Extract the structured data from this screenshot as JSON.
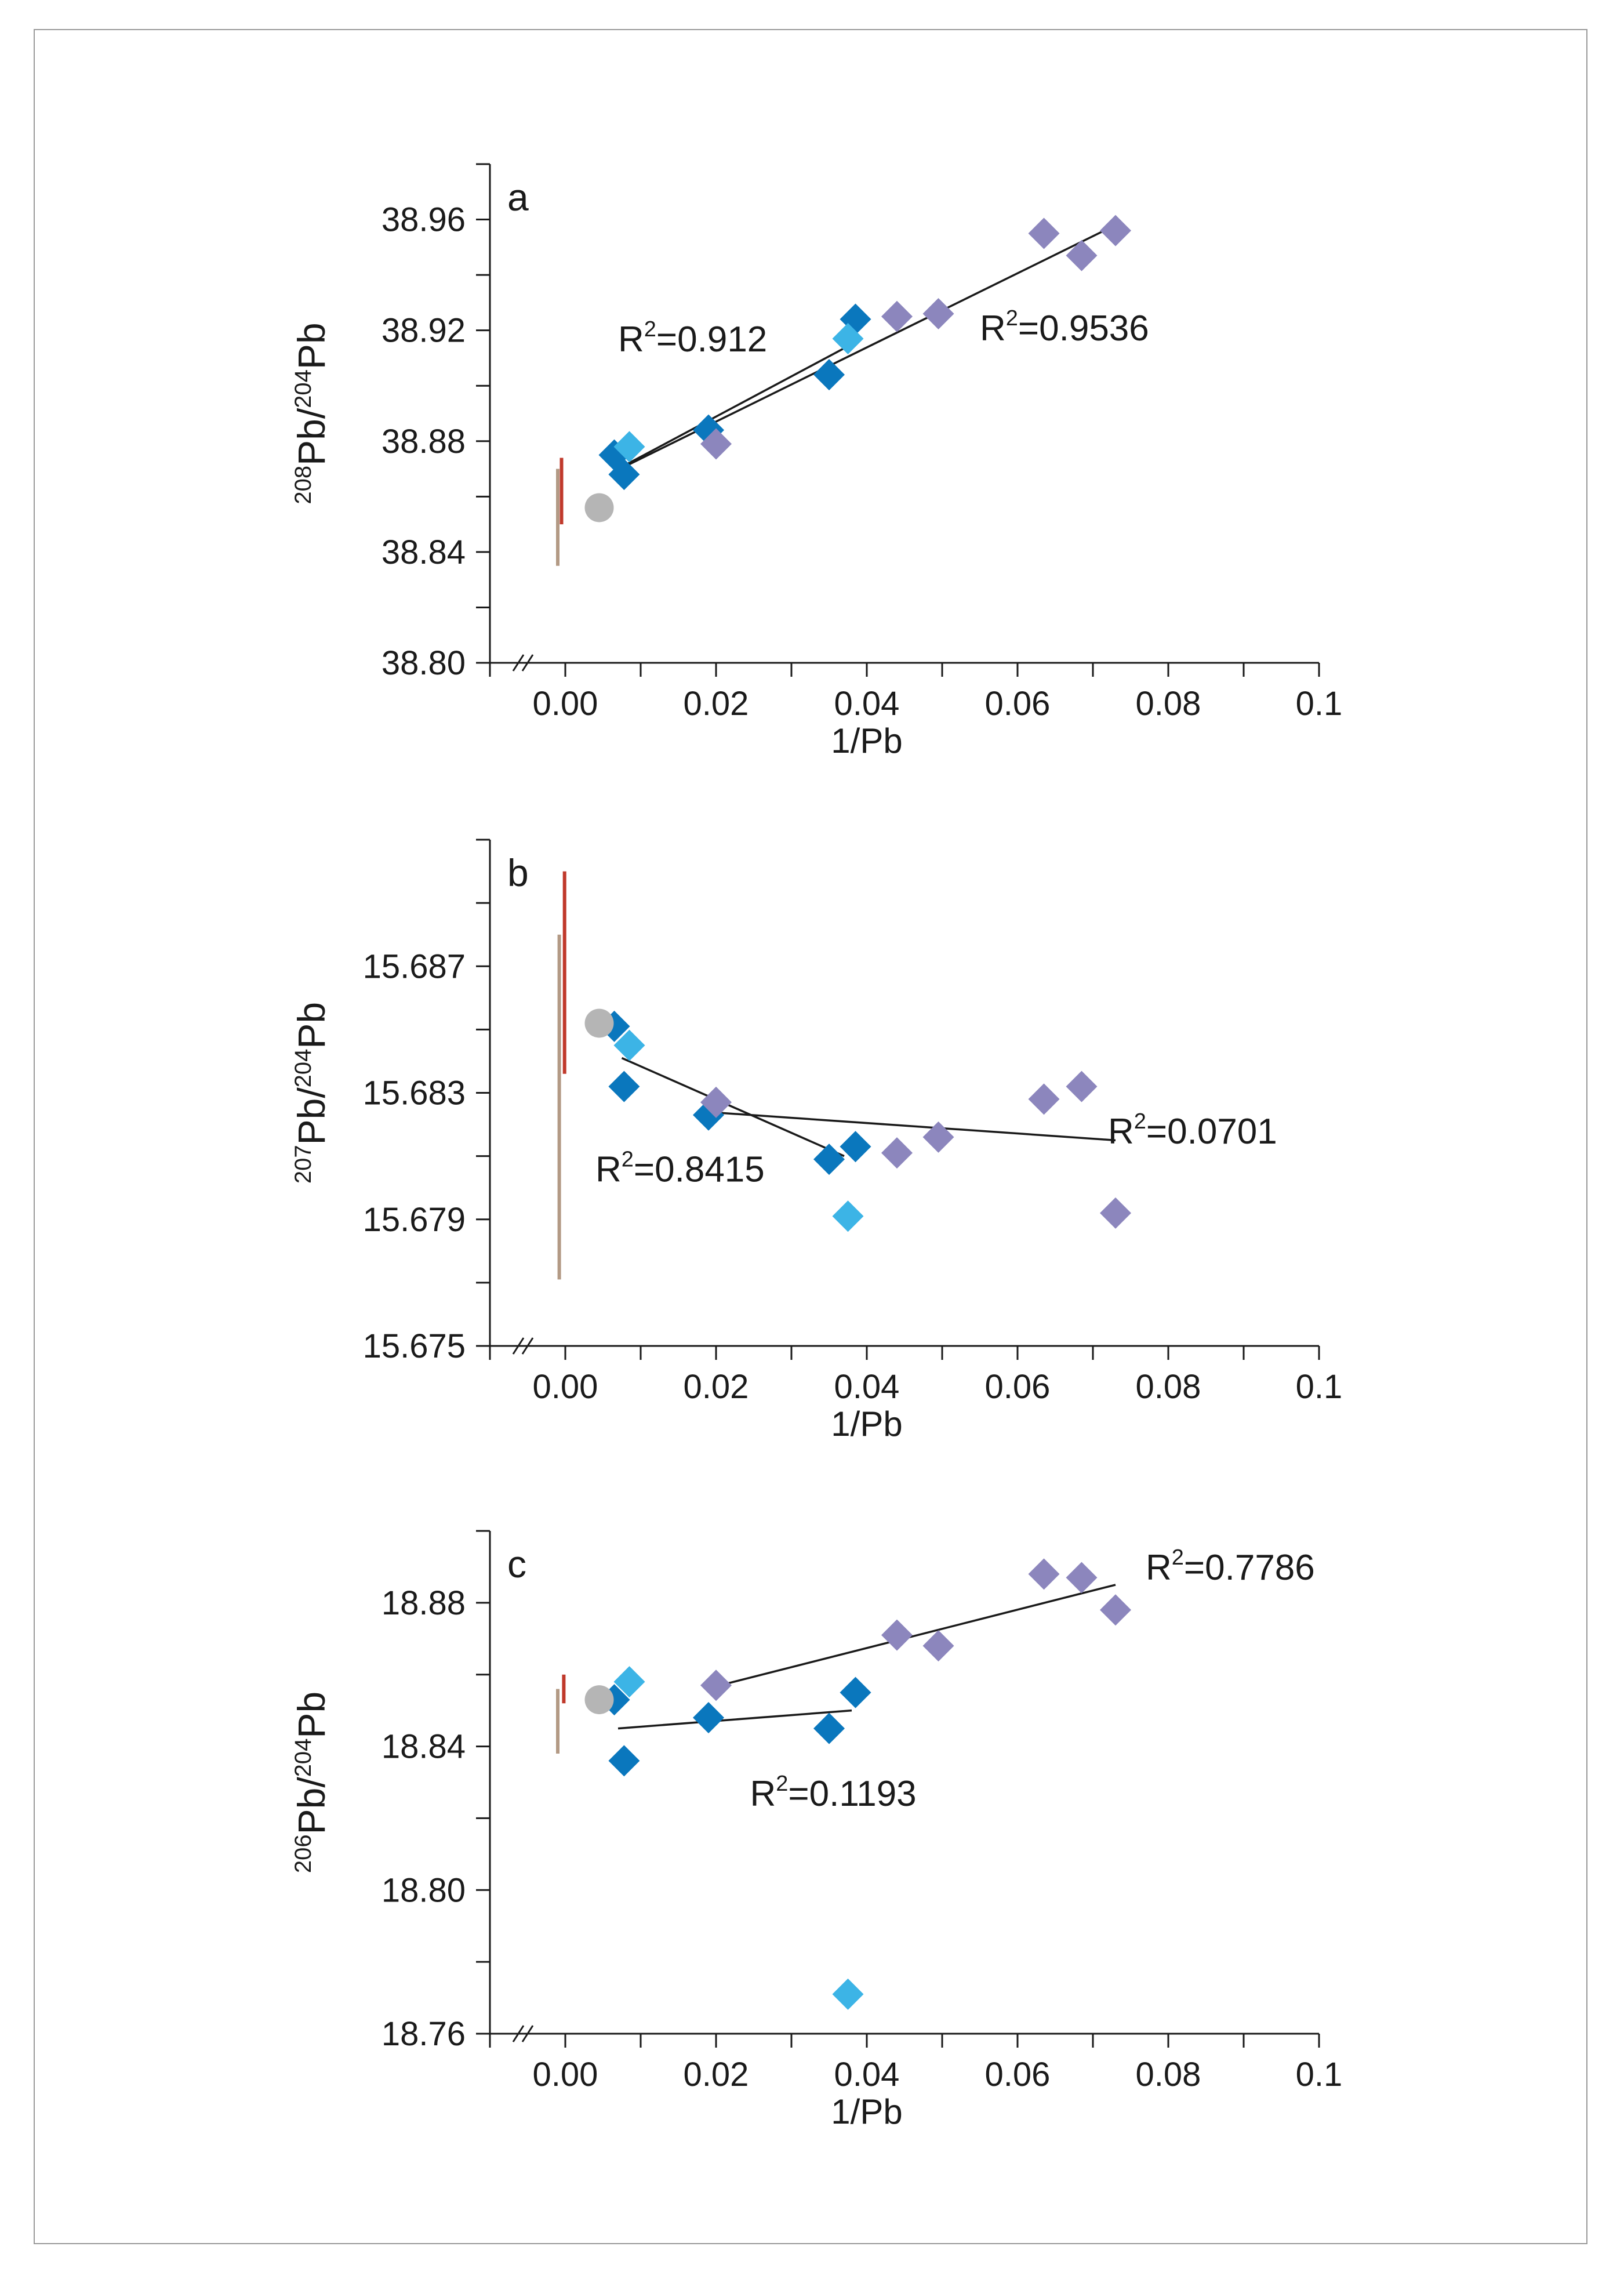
{
  "x_axis": {
    "label": "1/Pb",
    "ticks": [
      0.0,
      0.02,
      0.04,
      0.06,
      0.08,
      0.1
    ],
    "tick_labels": [
      "0.00",
      "0.02",
      "0.04",
      "0.06",
      "0.08",
      "0.1"
    ],
    "range": [
      -0.01,
      0.1
    ]
  },
  "series_colors": {
    "dark_blue": "#0a77bd",
    "light_blue": "#3cb4e6",
    "purple": "#8c86bd",
    "gray": "#b5b5b5",
    "red": "#c0392b",
    "tan": "#b39a85",
    "line": "#1a1a1a"
  },
  "chart_data": [
    {
      "type": "scatter",
      "panel": "a",
      "ylabel_pre": "208",
      "ylabel_mid": "Pb/",
      "ylabel_sup2": "204",
      "ylabel_post": "Pb",
      "xlabel": "1/Pb",
      "ylim": [
        38.8,
        38.98
      ],
      "yticks": [
        38.8,
        38.84,
        38.88,
        38.92,
        38.96
      ],
      "ytick_labels": [
        "38.80",
        "38.84",
        "38.88",
        "38.92",
        "38.96"
      ],
      "series": [
        {
          "name": "dark blue",
          "color": "dark_blue",
          "x": [
            0.0065,
            0.0078,
            0.019,
            0.035,
            0.0385
          ],
          "y": [
            38.875,
            38.868,
            38.884,
            38.904,
            38.924
          ]
        },
        {
          "name": "light blue",
          "color": "light_blue",
          "x": [
            0.0085,
            0.0375
          ],
          "y": [
            38.878,
            38.917
          ]
        },
        {
          "name": "purple",
          "color": "purple",
          "x": [
            0.02,
            0.044,
            0.0495,
            0.0635,
            0.0685,
            0.073
          ],
          "y": [
            38.879,
            38.925,
            38.926,
            38.955,
            38.947,
            38.956
          ]
        },
        {
          "name": "gray",
          "color": "gray",
          "x": [
            0.0045
          ],
          "y": [
            38.856
          ]
        }
      ],
      "ranges": [
        {
          "color": "red",
          "x": -0.0005,
          "y": [
            38.85,
            38.874
          ]
        },
        {
          "color": "tan",
          "x": -0.001,
          "y": [
            38.835,
            38.87
          ]
        }
      ],
      "trendlines": [
        {
          "x": [
            0.007,
            0.038
          ],
          "y": [
            38.87,
            38.915
          ]
        },
        {
          "x": [
            0.008,
            0.073
          ],
          "y": [
            38.871,
            38.958
          ]
        }
      ],
      "annotations": [
        {
          "r": "R",
          "sup": "2",
          "rest": "=0.912",
          "x": 0.007,
          "y": 38.917
        },
        {
          "r": "R",
          "sup": "2",
          "rest": "=0.9536",
          "x": 0.055,
          "y": 38.921
        }
      ]
    },
    {
      "type": "scatter",
      "panel": "b",
      "ylabel_pre": "207",
      "ylabel_mid": "Pb/",
      "ylabel_sup2": "204",
      "ylabel_post": "Pb",
      "xlabel": "1/Pb",
      "ylim": [
        15.675,
        15.691
      ],
      "yticks": [
        15.675,
        15.679,
        15.683,
        15.687
      ],
      "ytick_labels": [
        "15.675",
        "15.679",
        "15.683",
        "15.687"
      ],
      "series": [
        {
          "name": "dark blue",
          "color": "dark_blue",
          "x": [
            0.0065,
            0.0078,
            0.019,
            0.035,
            0.0385
          ],
          "y": [
            15.6851,
            15.6832,
            15.6823,
            15.6809,
            15.6813
          ]
        },
        {
          "name": "light blue",
          "color": "light_blue",
          "x": [
            0.0085,
            0.0375
          ],
          "y": [
            15.6845,
            15.6791
          ]
        },
        {
          "name": "purple",
          "color": "purple",
          "x": [
            0.02,
            0.044,
            0.0495,
            0.0635,
            0.0685,
            0.073
          ],
          "y": [
            15.6827,
            15.6811,
            15.6816,
            15.6828,
            15.6832,
            15.6792
          ]
        },
        {
          "name": "gray",
          "color": "gray",
          "x": [
            0.0045
          ],
          "y": [
            15.6852
          ]
        }
      ],
      "ranges": [
        {
          "color": "red",
          "x": -0.0001,
          "y": [
            15.6836,
            15.69
          ]
        },
        {
          "color": "tan",
          "x": -0.0008,
          "y": [
            15.6771,
            15.688
          ]
        }
      ],
      "trendlines": [
        {
          "x": [
            0.0075,
            0.037
          ],
          "y": [
            15.6841,
            15.681
          ]
        },
        {
          "x": [
            0.0185,
            0.073
          ],
          "y": [
            15.6824,
            15.6815
          ]
        }
      ],
      "annotations": [
        {
          "r": "R",
          "sup": "2",
          "rest": "=0.8415",
          "x": 0.004,
          "y": 15.6806
        },
        {
          "r": "R",
          "sup": "2",
          "rest": "=0.0701",
          "x": 0.072,
          "y": 15.6818
        }
      ]
    },
    {
      "type": "scatter",
      "panel": "c",
      "ylabel_pre": "206",
      "ylabel_mid": "Pb/",
      "ylabel_sup2": "204",
      "ylabel_post": "Pb",
      "xlabel": "1/Pb",
      "ylim": [
        18.76,
        18.9
      ],
      "yticks": [
        18.76,
        18.8,
        18.84,
        18.88
      ],
      "ytick_labels": [
        "18.76",
        "18.80",
        "18.84",
        "18.88"
      ],
      "series": [
        {
          "name": "dark blue",
          "color": "dark_blue",
          "x": [
            0.0065,
            0.0078,
            0.019,
            0.035,
            0.0385
          ],
          "y": [
            18.853,
            18.836,
            18.848,
            18.845,
            18.855
          ]
        },
        {
          "name": "light blue",
          "color": "light_blue",
          "x": [
            0.0085,
            0.0375
          ],
          "y": [
            18.858,
            18.771
          ]
        },
        {
          "name": "purple",
          "color": "purple",
          "x": [
            0.02,
            0.044,
            0.0495,
            0.0635,
            0.0685,
            0.073
          ],
          "y": [
            18.857,
            18.871,
            18.868,
            18.888,
            18.887,
            18.878
          ]
        },
        {
          "name": "gray",
          "color": "gray",
          "x": [
            0.0045
          ],
          "y": [
            18.853
          ]
        }
      ],
      "ranges": [
        {
          "color": "red",
          "x": -0.0002,
          "y": [
            18.852,
            18.86
          ]
        },
        {
          "color": "tan",
          "x": -0.001,
          "y": [
            18.838,
            18.856
          ]
        }
      ],
      "trendlines": [
        {
          "x": [
            0.007,
            0.038
          ],
          "y": [
            18.845,
            18.85
          ]
        },
        {
          "x": [
            0.0205,
            0.073
          ],
          "y": [
            18.857,
            18.885
          ]
        }
      ],
      "annotations": [
        {
          "r": "R",
          "sup": "2",
          "rest": "=0.7786",
          "x": 0.077,
          "y": 18.89
        },
        {
          "r": "R",
          "sup": "2",
          "rest": "=0.1193",
          "x": 0.0245,
          "y": 18.827
        }
      ]
    }
  ]
}
